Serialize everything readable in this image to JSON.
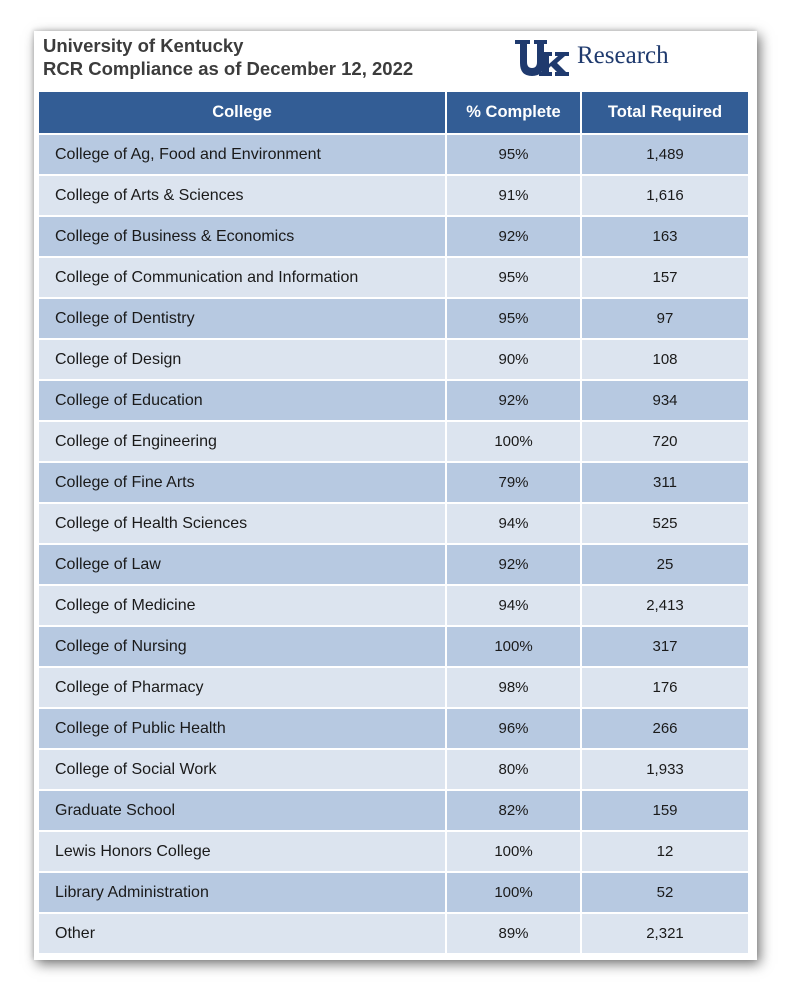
{
  "header": {
    "line1": "University of Kentucky",
    "line2": "RCR Compliance as of December 12, 2022",
    "logo_mark": "UK",
    "logo_text": "Research"
  },
  "colors": {
    "header_bg": "#335d95",
    "row_dark": "#b7c9e1",
    "row_light": "#dce4ef",
    "logo_blue": "#1f3a6e"
  },
  "table": {
    "columns": [
      "College",
      "% Complete",
      "Total Required"
    ],
    "rows": [
      {
        "college": "College of Ag, Food and Environment",
        "complete": "95%",
        "total": "1,489"
      },
      {
        "college": "College of Arts & Sciences",
        "complete": "91%",
        "total": "1,616"
      },
      {
        "college": "College of Business & Economics",
        "complete": "92%",
        "total": "163"
      },
      {
        "college": "College of Communication and Information",
        "complete": "95%",
        "total": "157"
      },
      {
        "college": "College of Dentistry",
        "complete": "95%",
        "total": "97"
      },
      {
        "college": "College of Design",
        "complete": "90%",
        "total": "108"
      },
      {
        "college": "College of Education",
        "complete": "92%",
        "total": "934"
      },
      {
        "college": "College of Engineering",
        "complete": "100%",
        "total": "720"
      },
      {
        "college": "College of Fine Arts",
        "complete": "79%",
        "total": "311"
      },
      {
        "college": "College of Health Sciences",
        "complete": "94%",
        "total": "525"
      },
      {
        "college": "College of Law",
        "complete": "92%",
        "total": "25"
      },
      {
        "college": "College of Medicine",
        "complete": "94%",
        "total": "2,413"
      },
      {
        "college": "College of Nursing",
        "complete": "100%",
        "total": "317"
      },
      {
        "college": "College of Pharmacy",
        "complete": "98%",
        "total": "176"
      },
      {
        "college": "College of Public Health",
        "complete": "96%",
        "total": "266"
      },
      {
        "college": "College of Social Work",
        "complete": "80%",
        "total": "1,933"
      },
      {
        "college": "Graduate School",
        "complete": "82%",
        "total": "159"
      },
      {
        "college": "Lewis Honors College",
        "complete": "100%",
        "total": "12"
      },
      {
        "college": "Library Administration",
        "complete": "100%",
        "total": "52"
      },
      {
        "college": "Other",
        "complete": "89%",
        "total": "2,321"
      }
    ]
  }
}
